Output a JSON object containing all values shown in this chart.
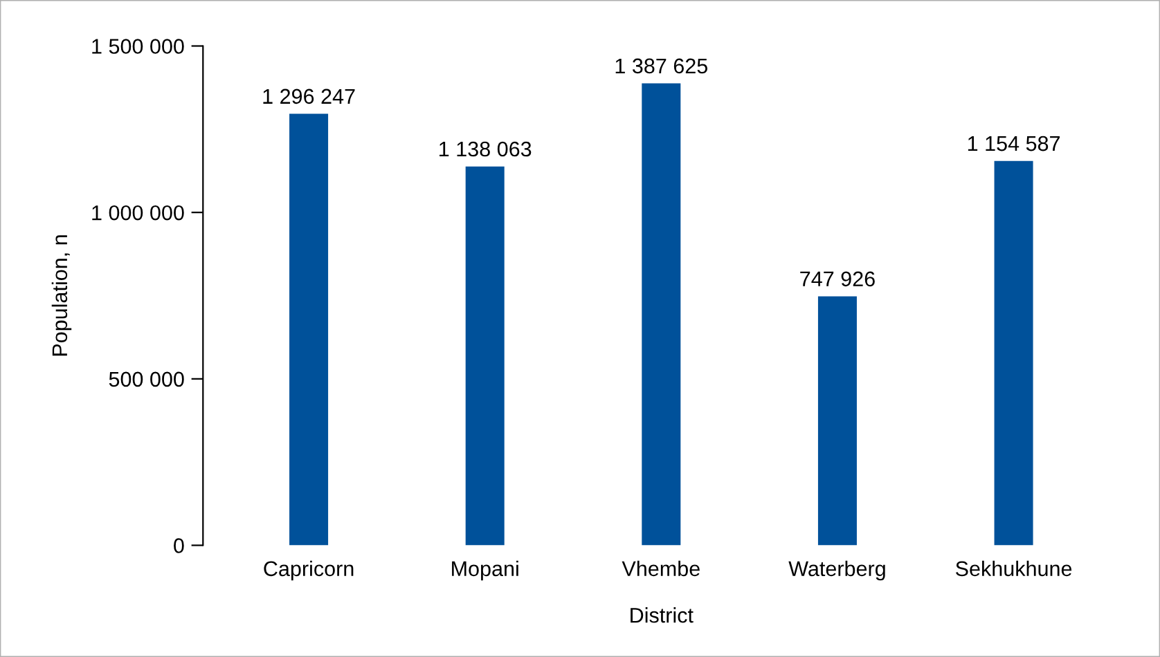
{
  "chart_data": {
    "type": "bar",
    "xlabel": "District",
    "ylabel": "Population, n",
    "categories": [
      "Capricorn",
      "Mopani",
      "Vhembe",
      "Waterberg",
      "Sekhukhune"
    ],
    "values": [
      1296247,
      1138063,
      1387625,
      747926,
      1154587
    ],
    "value_labels": [
      "1 296 247",
      "1 138 063",
      "1 387 625",
      "747 926",
      "1 154 587"
    ],
    "color": "#00519a",
    "ylim": [
      0,
      1500000
    ],
    "yticks": [
      0,
      {
        "value": 500000,
        "label": "500 000"
      },
      {
        "value": 1000000,
        "label": "1 000 000"
      },
      {
        "value": 1500000,
        "label": "1 500 000"
      }
    ],
    "grid": false
  }
}
